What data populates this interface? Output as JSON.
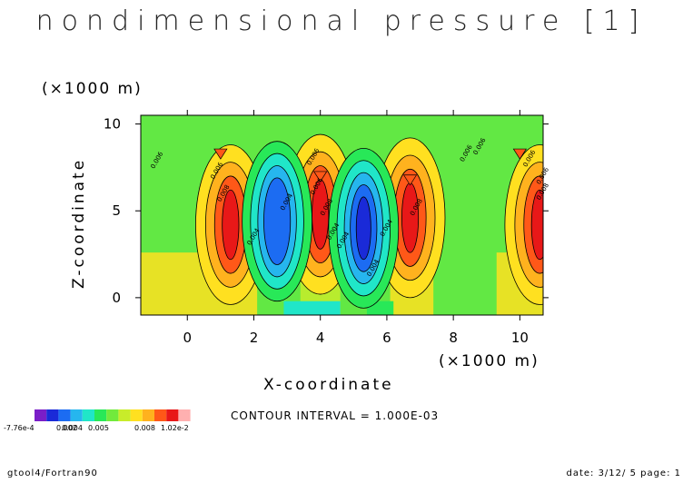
{
  "title": "nondimensional pressure [1]",
  "colors": {
    "palette": [
      "#7a1ec8",
      "#1a2ad8",
      "#1c6cf2",
      "#26b6ee",
      "#20e6c8",
      "#28e858",
      "#72ea3c",
      "#c8ec2a",
      "#ffe020",
      "#ffb21e",
      "#ff5818",
      "#e81818",
      "#ffb0b0"
    ]
  },
  "chart_data": {
    "type": "heatmap",
    "title": "nondimensional pressure [1]",
    "xlabel": "X-coordinate",
    "ylabel": "Z-coordinate",
    "x_unit": "(×1000 m)",
    "y_unit": "(×1000 m)",
    "xlim": [
      -1.4,
      10.7
    ],
    "ylim": [
      -1.0,
      10.5
    ],
    "x_ticks": [
      "0",
      "2",
      "4",
      "6",
      "8",
      "10"
    ],
    "y_ticks": [
      "0",
      "5",
      "10"
    ],
    "contour_interval": "CONTOUR INTERVAL = 1.000E-03",
    "legend_labels": [
      "-7.76e-4",
      "0.002",
      "0.004",
      "0.005",
      "0.008",
      "1.02e-2"
    ],
    "contour_labels": [
      "0.006",
      "0.006",
      "0.006",
      "0.006",
      "0.004",
      "0.004",
      "0.004",
      "0.004",
      "0.004",
      "0.006",
      "0.006",
      "0.006",
      "0.008",
      "0.008",
      "0.008",
      "0.008",
      "0.006",
      "0.004"
    ],
    "features": [
      {
        "x": 1.3,
        "z": 4.2,
        "kind": "max",
        "level": 0.0095
      },
      {
        "x": 4.0,
        "z": 4.8,
        "kind": "max",
        "level": 0.0092
      },
      {
        "x": 6.7,
        "z": 4.6,
        "kind": "max",
        "level": 0.009
      },
      {
        "x": 10.6,
        "z": 4.2,
        "kind": "max",
        "level": 0.01
      },
      {
        "x": 2.7,
        "z": 4.4,
        "kind": "min",
        "level": 0.001
      },
      {
        "x": 5.3,
        "z": 4.0,
        "kind": "min",
        "level": -0.0005
      }
    ]
  },
  "footer": {
    "left": "gtool4/Fortran90",
    "right": "date: 3/12/ 5 page: 1"
  }
}
